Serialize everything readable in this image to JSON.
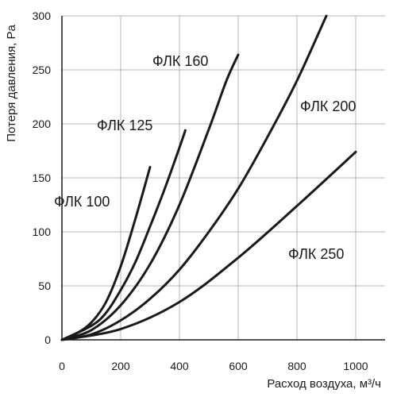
{
  "chart_data": {
    "type": "line",
    "title": "",
    "xlabel": "Расход воздуха, м³/ч",
    "ylabel": "Потеря давления, Pa",
    "xlim": [
      0,
      1100
    ],
    "ylim": [
      0,
      300
    ],
    "xticks": [
      0,
      200,
      400,
      600,
      800,
      1000
    ],
    "yticks": [
      0,
      50,
      100,
      150,
      200,
      250,
      300
    ],
    "grid": true,
    "colors": {
      "curve": "#1a1a1a",
      "grid": "#b5b5b5",
      "axis": "#1a1a1a"
    },
    "series": [
      {
        "name": "ФЛК 100",
        "x": [
          0,
          50,
          100,
          150,
          200,
          250,
          300
        ],
        "y": [
          0,
          6,
          16,
          35,
          68,
          112,
          160
        ]
      },
      {
        "name": "ФЛК 125",
        "x": [
          0,
          100,
          150,
          200,
          250,
          300,
          350,
          400,
          420
        ],
        "y": [
          0,
          13,
          25,
          46,
          72,
          105,
          140,
          178,
          194
        ]
      },
      {
        "name": "ФЛК 160",
        "x": [
          0,
          100,
          200,
          300,
          400,
          500,
          560,
          600
        ],
        "y": [
          0,
          9,
          32,
          70,
          125,
          195,
          240,
          264
        ]
      },
      {
        "name": "ФЛК 200",
        "x": [
          0,
          100,
          200,
          300,
          400,
          500,
          600,
          700,
          800,
          900
        ],
        "y": [
          0,
          5,
          18,
          38,
          65,
          100,
          140,
          188,
          240,
          300
        ]
      },
      {
        "name": "ФЛК 250",
        "x": [
          0,
          200,
          400,
          600,
          800,
          1000
        ],
        "y": [
          0,
          10,
          35,
          76,
          124,
          174
        ]
      }
    ]
  }
}
